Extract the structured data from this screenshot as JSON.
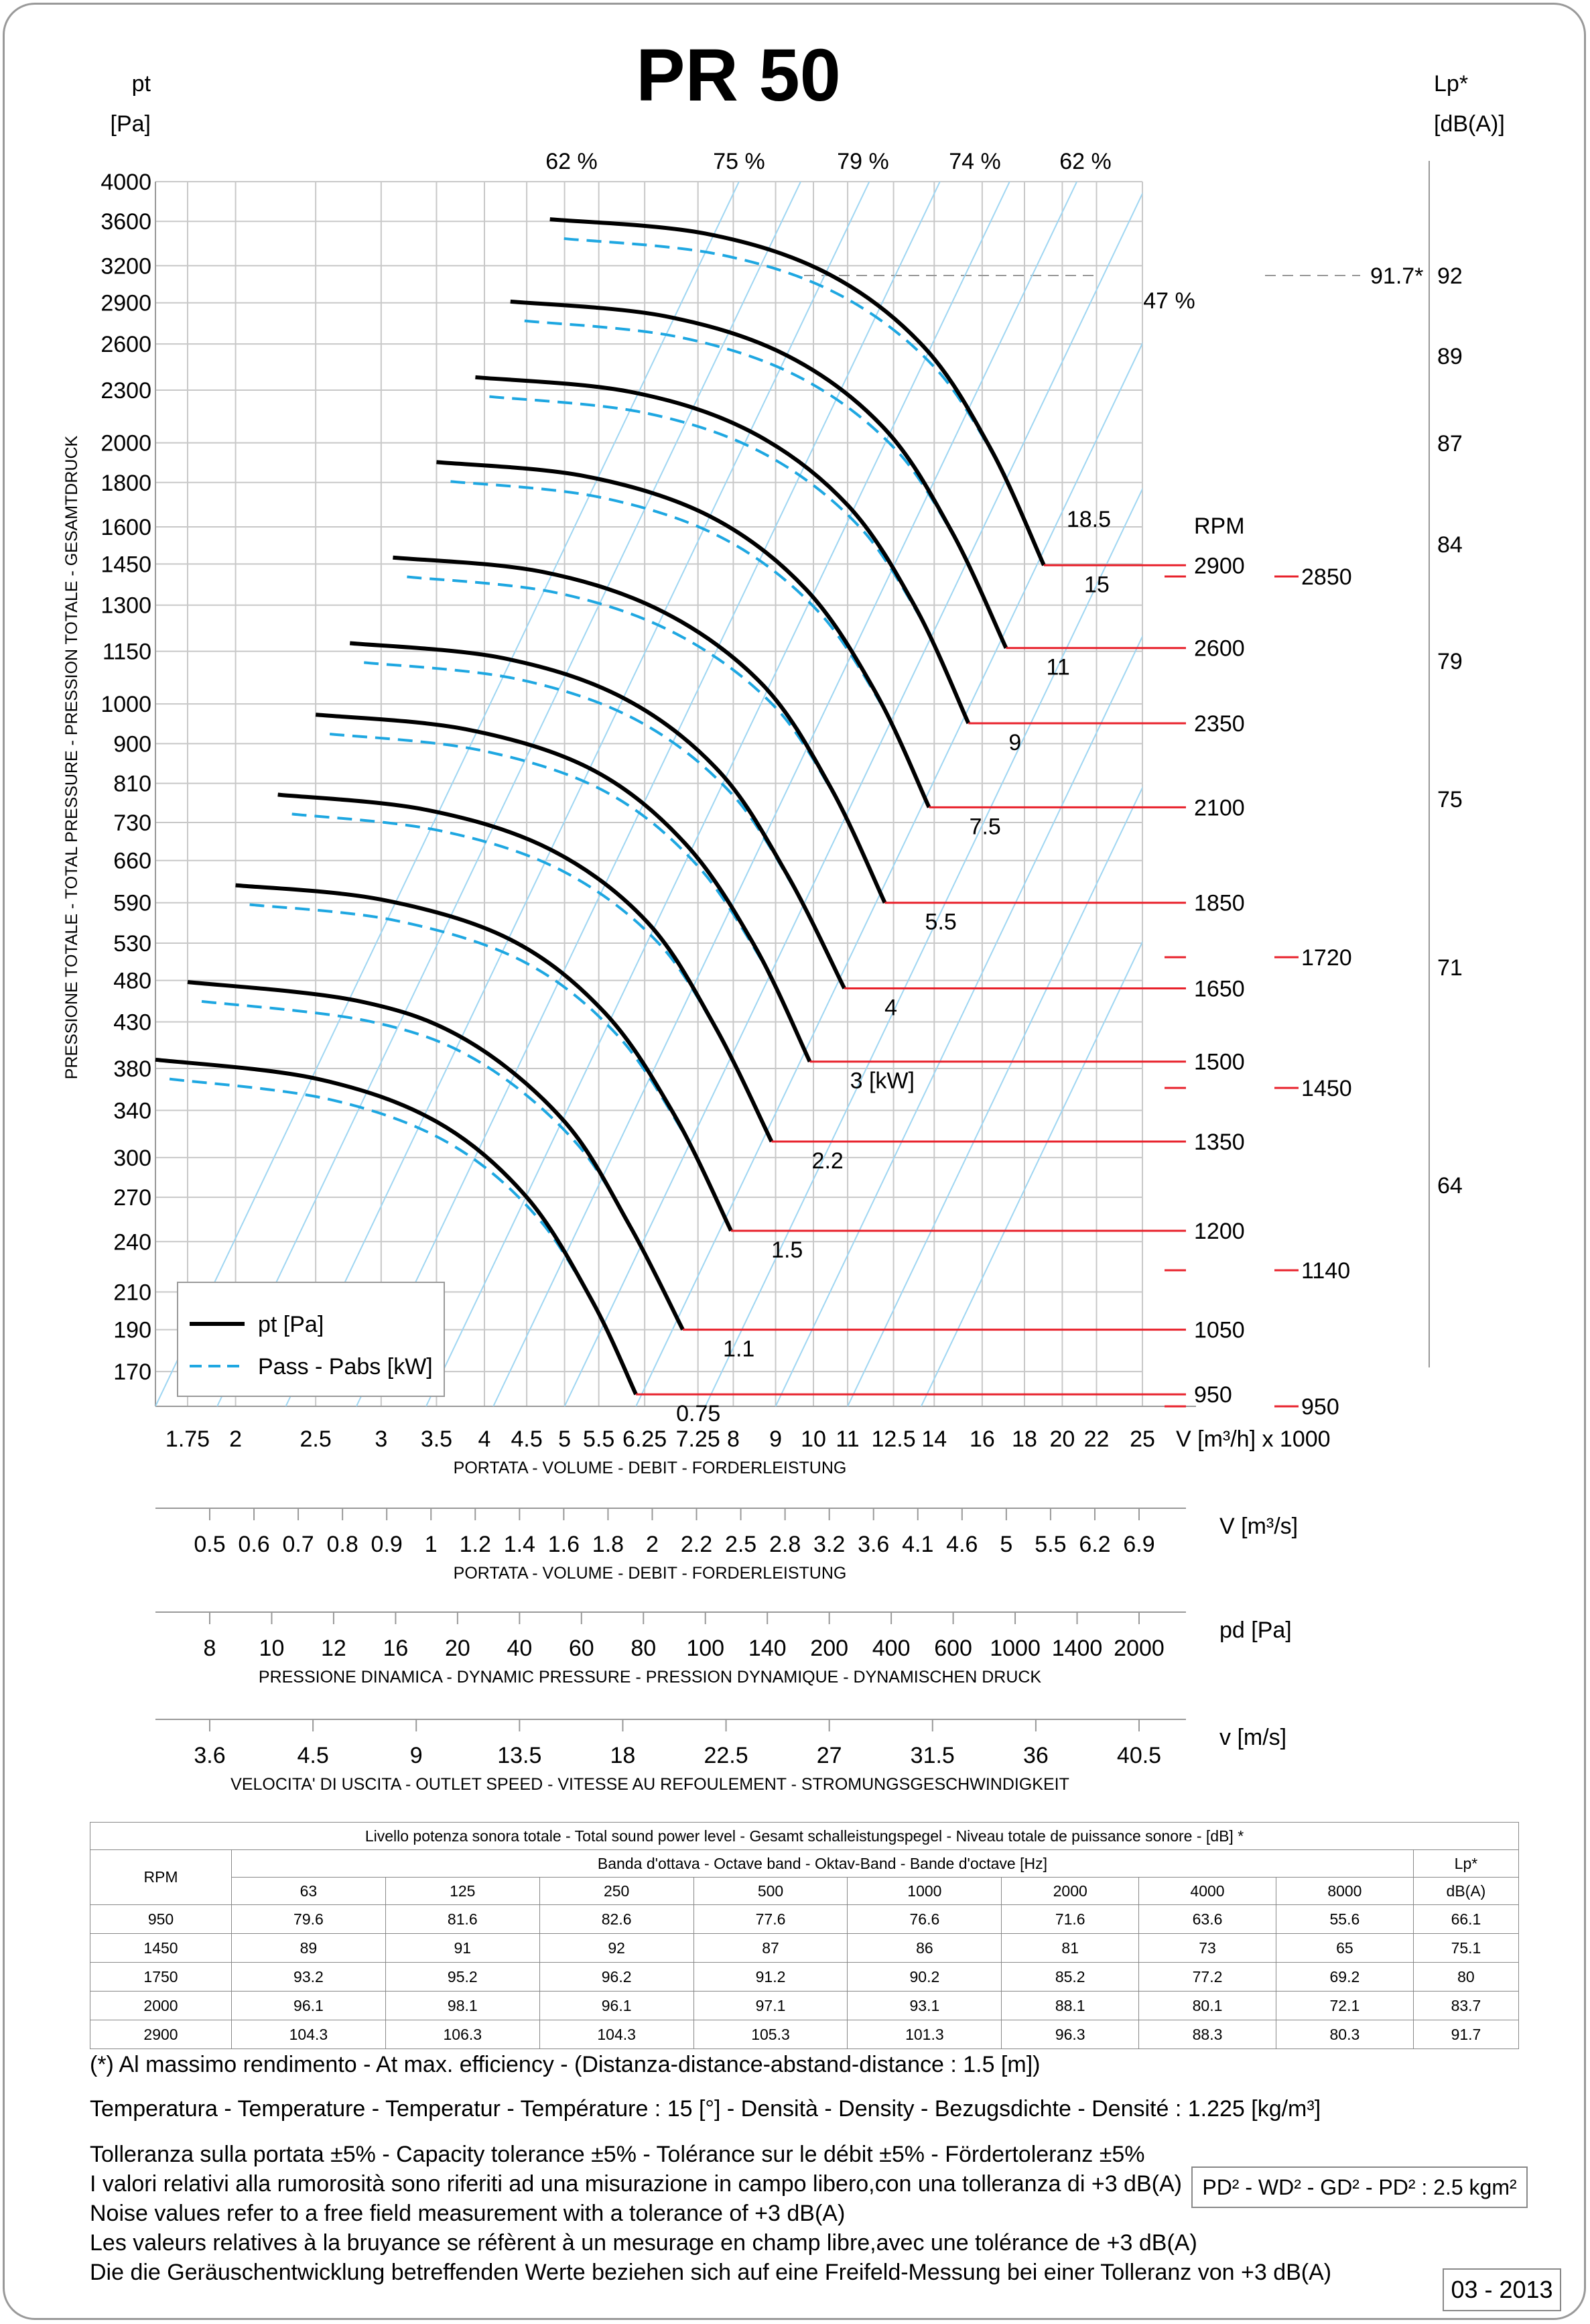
{
  "title": "PR 50",
  "chart_data": {
    "type": "line",
    "x_axis": {
      "label": "V [m³/h]  x 1000",
      "sublabel": "PORTATA - VOLUME - DEBIT - FORDERLEISTUNG",
      "scale": "log",
      "tick_labels": [
        "1.75",
        "2",
        "2.5",
        "3",
        "3.5",
        "4",
        "4.5",
        "5",
        "5.5",
        "6.25",
        "7.25",
        "8",
        "9",
        "10",
        "11",
        "12.5",
        "14",
        "16",
        "18",
        "20",
        "22",
        "25"
      ],
      "range": [
        1.6,
        25
      ]
    },
    "y_axis": {
      "label_line1": "pt",
      "label_line2": "[Pa]",
      "side_label": "PRESSIONE TOTALE - TOTAL PRESSURE - PRESSION TOTALE - GESAMTDRUCK",
      "scale": "log",
      "tick_labels": [
        "4000",
        "3600",
        "3200",
        "2900",
        "2600",
        "2300",
        "2000",
        "1800",
        "1600",
        "1450",
        "1300",
        "1150",
        "1000",
        "900",
        "810",
        "730",
        "660",
        "590",
        "530",
        "480",
        "430",
        "380",
        "340",
        "300",
        "270",
        "240",
        "210",
        "190",
        "170"
      ],
      "range": [
        155,
        4000
      ]
    },
    "right_axis": {
      "label_line1": "Lp*",
      "label_line2": "[dB(A)]",
      "tick_labels": [
        "92",
        "89",
        "87",
        "84",
        "79",
        "75",
        "71",
        "64"
      ],
      "max_marker": "91.7*"
    },
    "efficiency_labels": [
      "62 %",
      "75 %",
      "79 %",
      "74 %",
      "62 %",
      "47 %"
    ],
    "legend": [
      {
        "name": "pt [Pa]",
        "style": "solid",
        "color": "#000000"
      },
      {
        "name": "Pass - Pabs [kW]",
        "style": "dashed",
        "color": "#1ea7e1"
      }
    ],
    "speed_curves": [
      {
        "rpm": 950,
        "points": [
          [
            1.6,
            389
          ],
          [
            2.5,
            370
          ],
          [
            3.5,
            330
          ],
          [
            4.5,
            270
          ],
          [
            5.4,
            205
          ],
          [
            6.1,
            160
          ]
        ]
      },
      {
        "rpm": 1050,
        "points": [
          [
            1.75,
            478
          ],
          [
            2.8,
            455
          ],
          [
            3.8,
            410
          ],
          [
            5.0,
            330
          ],
          [
            6.0,
            250
          ],
          [
            6.95,
            190
          ]
        ]
      },
      {
        "rpm": 1200,
        "points": [
          [
            2.0,
            618
          ],
          [
            3.0,
            595
          ],
          [
            4.3,
            535
          ],
          [
            5.6,
            440
          ],
          [
            6.8,
            335
          ],
          [
            7.95,
            247
          ]
        ]
      },
      {
        "rpm": 1350,
        "points": [
          [
            2.25,
            786
          ],
          [
            3.4,
            755
          ],
          [
            4.8,
            680
          ],
          [
            6.3,
            560
          ],
          [
            7.6,
            425
          ],
          [
            8.9,
            313
          ]
        ]
      },
      {
        "rpm": 1500,
        "points": [
          [
            2.5,
            972
          ],
          [
            3.8,
            935
          ],
          [
            5.4,
            840
          ],
          [
            7.0,
            690
          ],
          [
            8.5,
            525
          ],
          [
            9.9,
            387
          ]
        ]
      },
      {
        "rpm": 1650,
        "points": [
          [
            2.75,
            1175
          ],
          [
            4.2,
            1130
          ],
          [
            5.9,
            1015
          ],
          [
            7.7,
            835
          ],
          [
            9.3,
            635
          ],
          [
            10.9,
            470
          ]
        ]
      },
      {
        "rpm": 1850,
        "points": [
          [
            3.1,
            1475
          ],
          [
            4.7,
            1420
          ],
          [
            6.6,
            1275
          ],
          [
            8.7,
            1050
          ],
          [
            10.5,
            800
          ],
          [
            12.2,
            590
          ]
        ]
      },
      {
        "rpm": 2100,
        "points": [
          [
            3.5,
            1900
          ],
          [
            5.3,
            1830
          ],
          [
            7.5,
            1645
          ],
          [
            9.8,
            1355
          ],
          [
            11.9,
            1030
          ],
          [
            13.8,
            760
          ]
        ]
      },
      {
        "rpm": 2350,
        "points": [
          [
            3.9,
            2380
          ],
          [
            6.0,
            2290
          ],
          [
            8.4,
            2060
          ],
          [
            11.0,
            1695
          ],
          [
            13.3,
            1290
          ],
          [
            15.4,
            950
          ]
        ]
      },
      {
        "rpm": 2600,
        "points": [
          [
            4.3,
            2910
          ],
          [
            6.6,
            2800
          ],
          [
            9.3,
            2520
          ],
          [
            12.2,
            2075
          ],
          [
            14.7,
            1580
          ],
          [
            17.1,
            1160
          ]
        ]
      },
      {
        "rpm": 2900,
        "points": [
          [
            4.8,
            3620
          ],
          [
            7.4,
            3485
          ],
          [
            10.4,
            3135
          ],
          [
            13.6,
            2580
          ],
          [
            16.4,
            1965
          ],
          [
            19.0,
            1445
          ]
        ]
      }
    ],
    "power_curves": [
      {
        "kw": "0.75"
      },
      {
        "kw": "1.1"
      },
      {
        "kw": "1.5"
      },
      {
        "kw": "2.2"
      },
      {
        "kw": "3",
        "unit": "[kW]"
      },
      {
        "kw": "4"
      },
      {
        "kw": "5.5"
      },
      {
        "kw": "7.5"
      },
      {
        "kw": "9"
      },
      {
        "kw": "11"
      },
      {
        "kw": "15"
      },
      {
        "kw": "18.5"
      }
    ],
    "rpm_header": "RPM",
    "rpm_labels": [
      "2900",
      "2600",
      "2350",
      "2100",
      "1850",
      "1650",
      "1500",
      "1350",
      "1200",
      "1050",
      "950"
    ],
    "extra_rpm_labels": [
      "2850",
      "1720",
      "1450",
      "1140",
      "950"
    ],
    "scales": [
      {
        "unit": "V  [m³/s]",
        "sublabel": "PORTATA - VOLUME - DEBIT - FORDERLEISTUNG",
        "ticks": [
          "0.5",
          "0.6",
          "0.7",
          "0.8",
          "0.9",
          "1",
          "1.2",
          "1.4",
          "1.6",
          "1.8",
          "2",
          "2.2",
          "2.5",
          "2.8",
          "3.2",
          "3.6",
          "4.1",
          "4.6",
          "5",
          "5.5",
          "6.2",
          "6.9"
        ]
      },
      {
        "unit": "pd  [Pa]",
        "sublabel": "PRESSIONE DINAMICA - DYNAMIC PRESSURE - PRESSION DYNAMIQUE - DYNAMISCHEN DRUCK",
        "ticks": [
          "8",
          "10",
          "12",
          "16",
          "20",
          "40",
          "60",
          "80",
          "100",
          "140",
          "200",
          "400",
          "600",
          "1000",
          "1400",
          "2000"
        ]
      },
      {
        "unit": "v  [m/s]",
        "sublabel": "VELOCITA' DI USCITA - OUTLET SPEED - VITESSE AU REFOULEMENT - STROMUNGSGESCHWINDIGKEIT",
        "ticks": [
          "3.6",
          "4.5",
          "9",
          "13.5",
          "18",
          "22.5",
          "27",
          "31.5",
          "36",
          "40.5"
        ]
      }
    ]
  },
  "sound_table": {
    "caption": "Livello potenza sonora totale - Total sound power level - Gesamt schalleistungspegel - Niveau totale de puissance sonore - [dB]   *",
    "band_header": "Banda d'ottava - Octave band - Oktav-Band - Bande d'octave [Hz]",
    "rpm_header": "RPM",
    "lp_header": "Lp*",
    "lp_unit": "dB(A)",
    "bands": [
      "63",
      "125",
      "250",
      "500",
      "1000",
      "2000",
      "4000",
      "8000"
    ],
    "rows": [
      {
        "rpm": "950",
        "values": [
          "79.6",
          "81.6",
          "82.6",
          "77.6",
          "76.6",
          "71.6",
          "63.6",
          "55.6"
        ],
        "lp": "66.1"
      },
      {
        "rpm": "1450",
        "values": [
          "89",
          "91",
          "92",
          "87",
          "86",
          "81",
          "73",
          "65"
        ],
        "lp": "75.1"
      },
      {
        "rpm": "1750",
        "values": [
          "93.2",
          "95.2",
          "96.2",
          "91.2",
          "90.2",
          "85.2",
          "77.2",
          "69.2"
        ],
        "lp": "80"
      },
      {
        "rpm": "2000",
        "values": [
          "96.1",
          "98.1",
          "96.1",
          "97.1",
          "93.1",
          "88.1",
          "80.1",
          "72.1"
        ],
        "lp": "83.7"
      },
      {
        "rpm": "2900",
        "values": [
          "104.3",
          "106.3",
          "104.3",
          "105.3",
          "101.3",
          "96.3",
          "88.3",
          "80.3"
        ],
        "lp": "91.7"
      }
    ]
  },
  "notes": {
    "efficiency_note": "(*) Al massimo rendimento - At max. efficiency - (Distanza-distance-abstand-distance : 1.5 [m])",
    "conditions": "Temperatura - Temperature - Temperatur - Température : 15 [°]  -  Densità - Density - Bezugsdichte - Densité : 1.225 [kg/m³]",
    "tolerance_lines": [
      "Tolleranza sulla portata  ±5% - Capacity tolerance ±5% - Tolérance sur le débit ±5% - Fördertoleranz ±5%",
      "I valori relativi alla rumorosità sono riferiti ad una misurazione in campo libero,con una tolleranza di +3 dB(A)",
      "Noise values refer to a free field measurement with a tolerance of +3 dB(A)",
      "Les valeurs relatives à la bruyance se réfèrent à un mesurage en champ libre,avec une tolérance de +3 dB(A)",
      "Die die Geräuschentwicklung betreffenden Werte beziehen sich auf eine Freifeld-Messung bei einer Tolleranz von +3 dB(A)"
    ],
    "inertia": "PD² -  WD² - GD² -  PD²  :  2.5 kgm²",
    "date_code": "03 - 2013"
  }
}
